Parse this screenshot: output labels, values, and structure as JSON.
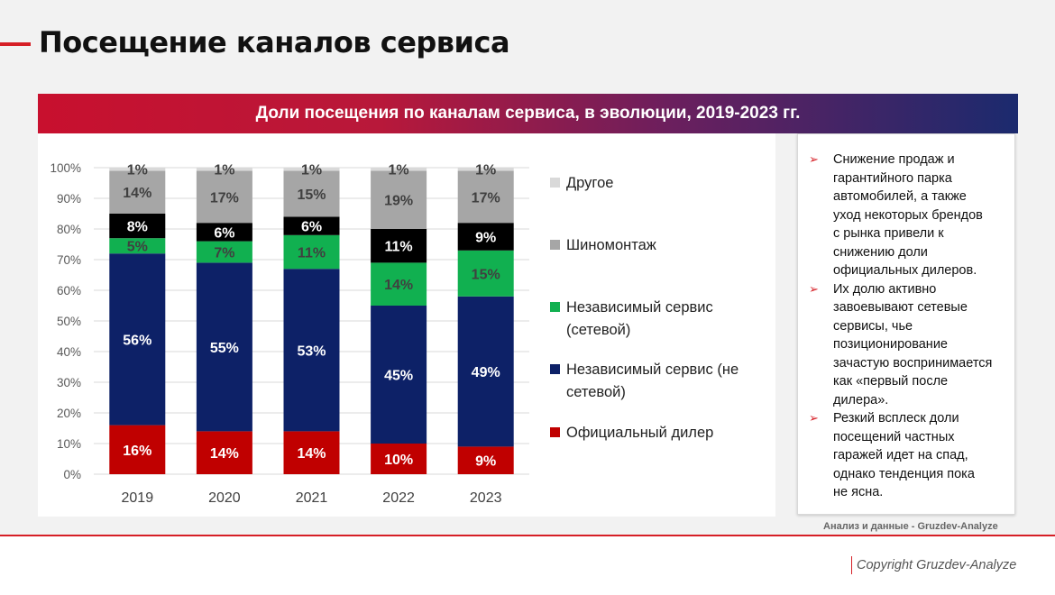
{
  "page": {
    "title": "Посещение каналов сервиса",
    "banner_title": "Доли посещения по каналам сервиса, в эволюции, 2019-2023 гг.",
    "source": "Анализ и данные - Gruzdev-Analyze",
    "copyright": "Copyright Gruzdev-Analyze"
  },
  "colors": {
    "accent": "#d61f26",
    "official": "#c00000",
    "independent_nonnetwork": "#0d2167",
    "independent_network": "#11b050",
    "tire": "#a6a6a6",
    "black_segment": "#000000",
    "other": "#d9d9d9"
  },
  "chart_data": {
    "type": "bar",
    "stacked": true,
    "categories": [
      "2019",
      "2020",
      "2021",
      "2022",
      "2023"
    ],
    "ylim": [
      0,
      100
    ],
    "yticks": [
      "0%",
      "10%",
      "20%",
      "30%",
      "40%",
      "50%",
      "60%",
      "70%",
      "80%",
      "90%",
      "100%"
    ],
    "grid": true,
    "legend_position": "right",
    "series": [
      {
        "name": "Официальный дилер",
        "color": "#c00000",
        "values": [
          16,
          14,
          14,
          10,
          9
        ],
        "labels": [
          "16%",
          "14%",
          "14%",
          "10%",
          "9%"
        ],
        "label_color": "#ffffff"
      },
      {
        "name": "Независимый сервис (не сетевой)",
        "color": "#0d2167",
        "values": [
          56,
          55,
          53,
          45,
          49
        ],
        "labels": [
          "56%",
          "55%",
          "53%",
          "45%",
          "49%"
        ],
        "label_color": "#ffffff"
      },
      {
        "name": "Независимый сервис (сетевой)",
        "color": "#11b050",
        "values": [
          5,
          7,
          11,
          14,
          15
        ],
        "labels": [
          "5%",
          "7%",
          "11%",
          "14%",
          "15%"
        ],
        "label_color": "#404040"
      },
      {
        "name": "",
        "color": "#000000",
        "values": [
          8,
          6,
          6,
          11,
          9
        ],
        "labels": [
          "8%",
          "6%",
          "6%",
          "11%",
          "9%"
        ],
        "label_color": "#ffffff"
      },
      {
        "name": "Шиномонтаж",
        "color": "#a6a6a6",
        "values": [
          14,
          17,
          15,
          19,
          17
        ],
        "labels": [
          "14%",
          "17%",
          "15%",
          "19%",
          "17%"
        ],
        "label_color": "#404040"
      },
      {
        "name": "Другое",
        "color": "#d9d9d9",
        "values": [
          1,
          1,
          1,
          1,
          1
        ],
        "labels": [
          "1%",
          "1%",
          "1%",
          "1%",
          "1%"
        ],
        "label_color": "#404040"
      }
    ]
  },
  "legend": [
    {
      "lines": [
        "Другое"
      ],
      "color": "#d9d9d9"
    },
    {
      "lines": [
        "Шиномонтаж"
      ],
      "color": "#a6a6a6"
    },
    {
      "lines": [
        "Независимый сервис",
        "(сетевой)"
      ],
      "color": "#11b050"
    },
    {
      "lines": [
        "Независимый сервис (не",
        "сетевой)"
      ],
      "color": "#0d2167"
    },
    {
      "lines": [
        "Официальный дилер"
      ],
      "color": "#c00000"
    }
  ],
  "notes": {
    "bullet_icon": "arrow-bullet",
    "items": [
      {
        "lines": [
          "Снижение продаж и",
          "гарантийного парка",
          "автомобилей, а также",
          "уход некоторых брендов",
          "с рынка привели к",
          "снижению доли",
          "официальных дилеров."
        ]
      },
      {
        "lines": [
          "Их долю активно",
          "завоевывают сетевые",
          "сервисы, чье",
          "позиционирование",
          "зачастую воспринимается",
          "как «первый после",
          "дилера»."
        ]
      },
      {
        "lines": [
          "Резкий всплеск доли",
          "посещений частных",
          "гаражей идет на спад,",
          "однако тенденция пока",
          "не ясна."
        ]
      }
    ]
  }
}
